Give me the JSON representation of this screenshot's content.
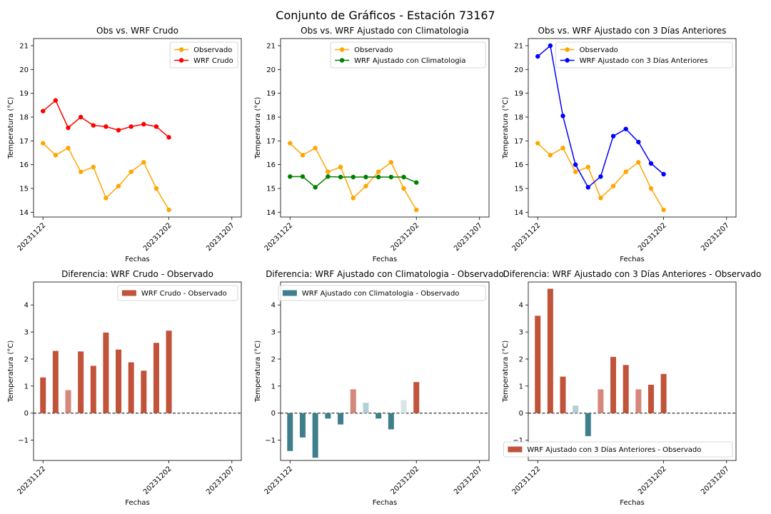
{
  "figure_title": "Conjunto de Gráficos - Estación 73167",
  "colors": {
    "observado": "#FFA500",
    "wrf_crudo": "#FF0000",
    "clim": "#008000",
    "tres_dias": "#0000FF",
    "bar_crudo": "#C0533A",
    "bar_crudo_light": "#D4877A",
    "bar_clim": "#3F7F8C",
    "bar_clim_light": "#B4CFD3",
    "bar_clim_pos": "#D4877A",
    "bar_tres": "#C0533A",
    "bar_tres_light": "#D4877A",
    "bar_tres_neg": "#3F7F8C",
    "bar_tres_neg_light": "#B4CFD3"
  },
  "chart_data": [
    {
      "type": "line",
      "title": "Obs vs. WRF Crudo",
      "xlabel": "Fechas",
      "ylabel": "Temperatura (°C)",
      "x": [
        "20231122",
        "20231123",
        "20231124",
        "20231125",
        "20231126",
        "20231127",
        "20231128",
        "20231129",
        "20231130",
        "20231201",
        "20231202",
        "20231203",
        "20231204",
        "20231205",
        "20231206",
        "20231207"
      ],
      "xtick_labels": [
        "20231122",
        "20231202",
        "20231207"
      ],
      "ylim": [
        13.8,
        21.3
      ],
      "yticks": [
        14,
        15,
        16,
        17,
        18,
        19,
        20,
        21
      ],
      "legend_position": "upper right",
      "series": [
        {
          "name": "Observado",
          "color": "#FFA500",
          "points": [
            [
              "20231122",
              16.9
            ],
            [
              "20231123",
              16.4
            ],
            [
              "20231124",
              16.7
            ],
            [
              "20231125",
              15.7
            ],
            [
              "20231126",
              15.9
            ],
            [
              "20231127",
              14.6
            ],
            [
              "20231128",
              15.1
            ],
            [
              "20231129",
              15.7
            ],
            [
              "20231130",
              16.1
            ],
            [
              "20231201",
              15.0
            ],
            [
              "20231202",
              14.1
            ]
          ]
        },
        {
          "name": "WRF Crudo",
          "color": "#FF0000",
          "points": [
            [
              "20231122",
              18.25
            ],
            [
              "20231123",
              18.7
            ],
            [
              "20231124",
              17.55
            ],
            [
              "20231125",
              18.0
            ],
            [
              "20231126",
              17.65
            ],
            [
              "20231127",
              17.6
            ],
            [
              "20231128",
              17.45
            ],
            [
              "20231129",
              17.6
            ],
            [
              "20231130",
              17.7
            ],
            [
              "20231201",
              17.6
            ],
            [
              "20231202",
              17.15
            ]
          ]
        }
      ]
    },
    {
      "type": "line",
      "title": "Obs vs. WRF Ajustado con Climatologia",
      "xlabel": "Fechas",
      "ylabel": "Temperatura (°C)",
      "x": [
        "20231122",
        "20231123",
        "20231124",
        "20231125",
        "20231126",
        "20231127",
        "20231128",
        "20231129",
        "20231130",
        "20231201",
        "20231202",
        "20231203",
        "20231204",
        "20231205",
        "20231206",
        "20231207"
      ],
      "xtick_labels": [
        "20231122",
        "20231202",
        "20231207"
      ],
      "ylim": [
        13.8,
        21.3
      ],
      "yticks": [
        14,
        15,
        16,
        17,
        18,
        19,
        20,
        21
      ],
      "legend_position": "upper right",
      "series": [
        {
          "name": "Observado",
          "color": "#FFA500",
          "points": [
            [
              "20231122",
              16.9
            ],
            [
              "20231123",
              16.4
            ],
            [
              "20231124",
              16.7
            ],
            [
              "20231125",
              15.7
            ],
            [
              "20231126",
              15.9
            ],
            [
              "20231127",
              14.6
            ],
            [
              "20231128",
              15.1
            ],
            [
              "20231129",
              15.7
            ],
            [
              "20231130",
              16.1
            ],
            [
              "20231201",
              15.0
            ],
            [
              "20231202",
              14.1
            ]
          ]
        },
        {
          "name": "WRF Ajustado con Climatologia",
          "color": "#008000",
          "points": [
            [
              "20231122",
              15.5
            ],
            [
              "20231123",
              15.5
            ],
            [
              "20231124",
              15.05
            ],
            [
              "20231125",
              15.5
            ],
            [
              "20231126",
              15.48
            ],
            [
              "20231127",
              15.48
            ],
            [
              "20231128",
              15.48
            ],
            [
              "20231129",
              15.48
            ],
            [
              "20231130",
              15.48
            ],
            [
              "20231201",
              15.48
            ],
            [
              "20231202",
              15.25
            ]
          ]
        }
      ]
    },
    {
      "type": "line",
      "title": "Obs vs. WRF Ajustado con 3 Días Anteriores",
      "xlabel": "Fechas",
      "ylabel": "Temperatura (°C)",
      "x": [
        "20231122",
        "20231123",
        "20231124",
        "20231125",
        "20231126",
        "20231127",
        "20231128",
        "20231129",
        "20231130",
        "20231201",
        "20231202",
        "20231203",
        "20231204",
        "20231205",
        "20231206",
        "20231207"
      ],
      "xtick_labels": [
        "20231122",
        "20231202",
        "20231207"
      ],
      "ylim": [
        13.8,
        21.3
      ],
      "yticks": [
        14,
        15,
        16,
        17,
        18,
        19,
        20,
        21
      ],
      "legend_position": "upper right",
      "series": [
        {
          "name": "Observado",
          "color": "#FFA500",
          "points": [
            [
              "20231122",
              16.9
            ],
            [
              "20231123",
              16.4
            ],
            [
              "20231124",
              16.7
            ],
            [
              "20231125",
              15.7
            ],
            [
              "20231126",
              15.9
            ],
            [
              "20231127",
              14.6
            ],
            [
              "20231128",
              15.1
            ],
            [
              "20231129",
              15.7
            ],
            [
              "20231130",
              16.1
            ],
            [
              "20231201",
              15.0
            ],
            [
              "20231202",
              14.1
            ]
          ]
        },
        {
          "name": "WRF Ajustado con 3 Días Anteriores",
          "color": "#0000FF",
          "points": [
            [
              "20231122",
              20.55
            ],
            [
              "20231123",
              21.0
            ],
            [
              "20231124",
              18.05
            ],
            [
              "20231125",
              16.0
            ],
            [
              "20231126",
              15.05
            ],
            [
              "20231127",
              15.5
            ],
            [
              "20231128",
              17.2
            ],
            [
              "20231129",
              17.5
            ],
            [
              "20231130",
              16.95
            ],
            [
              "20231201",
              16.05
            ],
            [
              "20231202",
              15.6
            ]
          ]
        }
      ]
    },
    {
      "type": "bar",
      "title": "Diferencia: WRF Crudo - Observado",
      "xlabel": "Fechas",
      "ylabel": "Temperatura (°C)",
      "x": [
        "20231122",
        "20231123",
        "20231124",
        "20231125",
        "20231126",
        "20231127",
        "20231128",
        "20231129",
        "20231130",
        "20231201",
        "20231202",
        "20231203",
        "20231204",
        "20231205",
        "20231206",
        "20231207"
      ],
      "xtick_labels": [
        "20231122",
        "20231202",
        "20231207"
      ],
      "ylim": [
        -1.75,
        4.85
      ],
      "yticks": [
        -1,
        0,
        1,
        2,
        3,
        4
      ],
      "legend_position": "upper right",
      "series": [
        {
          "name": "WRF Crudo - Observado",
          "legend_color": "#C0533A",
          "values": [
            [
              "20231122",
              1.32,
              "#C0533A"
            ],
            [
              "20231123",
              2.3,
              "#C0533A"
            ],
            [
              "20231124",
              0.85,
              "#D4877A"
            ],
            [
              "20231125",
              2.28,
              "#C0533A"
            ],
            [
              "20231126",
              1.75,
              "#C0533A"
            ],
            [
              "20231127",
              2.98,
              "#C0533A"
            ],
            [
              "20231128",
              2.35,
              "#C0533A"
            ],
            [
              "20231129",
              1.88,
              "#C0533A"
            ],
            [
              "20231130",
              1.57,
              "#C0533A"
            ],
            [
              "20231201",
              2.6,
              "#C0533A"
            ],
            [
              "20231202",
              3.05,
              "#C0533A"
            ]
          ]
        }
      ]
    },
    {
      "type": "bar",
      "title": "Diferencia: WRF Ajustado con Climatologia - Observado",
      "xlabel": "Fechas",
      "ylabel": "Temperatura (°C)",
      "x": [
        "20231122",
        "20231123",
        "20231124",
        "20231125",
        "20231126",
        "20231127",
        "20231128",
        "20231129",
        "20231130",
        "20231201",
        "20231202",
        "20231203",
        "20231204",
        "20231205",
        "20231206",
        "20231207"
      ],
      "xtick_labels": [
        "20231122",
        "20231202",
        "20231207"
      ],
      "ylim": [
        -1.75,
        4.85
      ],
      "yticks": [
        -1,
        0,
        1,
        2,
        3,
        4
      ],
      "legend_position": "upper right",
      "series": [
        {
          "name": "WRF Ajustado con Climatologia - Observado",
          "legend_color": "#3F7F8C",
          "values": [
            [
              "20231122",
              -1.4,
              "#3F7F8C"
            ],
            [
              "20231123",
              -0.9,
              "#3F7F8C"
            ],
            [
              "20231124",
              -1.65,
              "#3F7F8C"
            ],
            [
              "20231125",
              -0.2,
              "#3F7F8C"
            ],
            [
              "20231126",
              -0.42,
              "#3F7F8C"
            ],
            [
              "20231127",
              0.88,
              "#D4877A"
            ],
            [
              "20231128",
              0.38,
              "#B4CFD3"
            ],
            [
              "20231129",
              -0.2,
              "#3F7F8C"
            ],
            [
              "20231130",
              -0.6,
              "#3F7F8C"
            ],
            [
              "20231201",
              0.48,
              "#D8E6E8"
            ],
            [
              "20231202",
              1.15,
              "#C0533A"
            ]
          ]
        }
      ]
    },
    {
      "type": "bar",
      "title": "Diferencia: WRF Ajustado con 3 Días Anteriores - Observado",
      "xlabel": "Fechas",
      "ylabel": "Temperatura (°C)",
      "x": [
        "20231122",
        "20231123",
        "20231124",
        "20231125",
        "20231126",
        "20231127",
        "20231128",
        "20231129",
        "20231130",
        "20231201",
        "20231202",
        "20231203",
        "20231204",
        "20231205",
        "20231206",
        "20231207"
      ],
      "xtick_labels": [
        "20231122",
        "20231202",
        "20231207"
      ],
      "ylim": [
        -1.75,
        4.85
      ],
      "yticks": [
        -1,
        0,
        1,
        2,
        3,
        4
      ],
      "legend_position": "lower right",
      "series": [
        {
          "name": "WRF Ajustado con 3 Días Anteriores - Observado",
          "legend_color": "#C0533A",
          "values": [
            [
              "20231122",
              3.6,
              "#C0533A"
            ],
            [
              "20231123",
              4.6,
              "#C0533A"
            ],
            [
              "20231124",
              1.35,
              "#C0533A"
            ],
            [
              "20231125",
              0.28,
              "#B4CFD3"
            ],
            [
              "20231126",
              -0.85,
              "#3F7F8C"
            ],
            [
              "20231127",
              0.88,
              "#D4877A"
            ],
            [
              "20231128",
              2.08,
              "#C0533A"
            ],
            [
              "20231129",
              1.78,
              "#C0533A"
            ],
            [
              "20231130",
              0.88,
              "#D4877A"
            ],
            [
              "20231201",
              1.05,
              "#C0533A"
            ],
            [
              "20231202",
              1.45,
              "#C0533A"
            ]
          ]
        }
      ]
    }
  ]
}
